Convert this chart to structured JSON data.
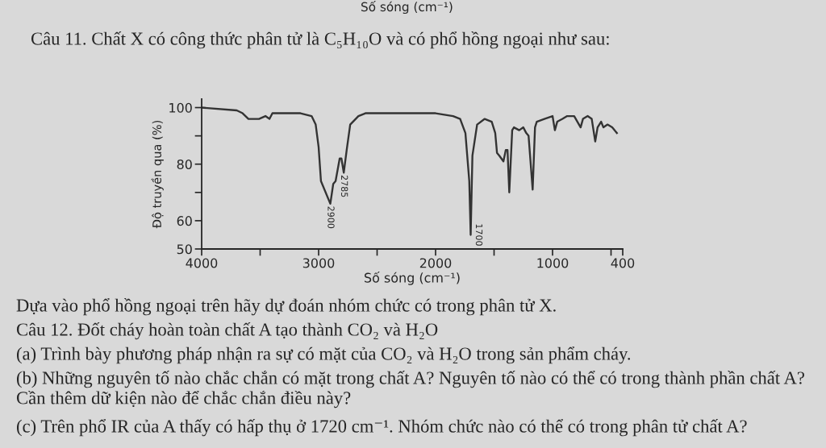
{
  "chart_data": {
    "type": "line",
    "title": "Câu 11. Chất X có công thức phân tử là C₅H₁₀O và có phổ hồng ngoại như sau:",
    "xlabel": "Số sóng (cm⁻¹)",
    "ylabel": "Độ truyền qua (%)",
    "x": [
      4000,
      3700,
      3650,
      3600,
      3510,
      3455,
      3420,
      3395,
      3345,
      3155,
      3060,
      3025,
      3000,
      2980,
      2900,
      2875,
      2855,
      2820,
      2805,
      2785,
      2760,
      2730,
      2660,
      2600,
      2000,
      1850,
      1790,
      1745,
      1712,
      1700,
      1685,
      1645,
      1580,
      1520,
      1490,
      1475,
      1455,
      1420,
      1400,
      1385,
      1370,
      1345,
      1330,
      1285,
      1250,
      1225,
      1205,
      1170,
      1150,
      1135,
      1070,
      1000,
      980,
      960,
      915,
      875,
      815,
      760,
      740,
      700,
      665,
      635,
      615,
      585,
      565,
      530,
      490,
      450
    ],
    "values": [
      100,
      99,
      98,
      96,
      96,
      97,
      96,
      98,
      98,
      98,
      97,
      94,
      86,
      74,
      66,
      73,
      74,
      82,
      82,
      77,
      85,
      94,
      97,
      98,
      98,
      97,
      96,
      91,
      74,
      55,
      83,
      94,
      96,
      95,
      91,
      84,
      83,
      81,
      85,
      85,
      70,
      92,
      93,
      92,
      93,
      91,
      90,
      71,
      93,
      95,
      96,
      97,
      92,
      95,
      96,
      97,
      97,
      93,
      96,
      97,
      96,
      88,
      93,
      95,
      93,
      94,
      93,
      91
    ],
    "color": "#333333",
    "xlim": [
      4000,
      400
    ],
    "ylim": [
      50,
      103
    ],
    "xticks": [
      4000,
      {
        "value": 3500,
        "label": null
      },
      3000,
      {
        "value": 2500,
        "label": null
      },
      2000,
      {
        "value": 1500,
        "label": null
      },
      1000,
      {
        "value": 500,
        "label": null
      },
      400
    ],
    "yticks": [
      50,
      60,
      {
        "value": 70,
        "label": null
      },
      80,
      {
        "value": 90,
        "label": null
      },
      100
    ],
    "annotations": [
      "Số sóng (cm⁻¹)",
      {
        "text": "2900",
        "x": 2900,
        "y": 66
      },
      {
        "text": "2785",
        "x": 2785,
        "y": 77
      },
      {
        "text": "1700",
        "x": 1700,
        "y": 55
      },
      "Dựa vào phổ hồng ngoại trên hãy dự đoán nhóm chức có trong phân tử X.",
      "Câu 12. Đốt cháy hoàn toàn chất A tạo thành CO₂ và H₂O",
      "(a) Trình bày phương pháp nhận ra sự có mặt của CO₂ và H₂O trong sản phẩm cháy.",
      "(b) Những nguyên tố nào chắc chắn có mặt trong chất A? Nguyên tố nào có thể có trong thành phần chất A? Cần thêm dữ kiện nào để chắc chắn điều này?",
      "(c) Trên phổ IR của A thấy có hấp thụ ở 1720 cm⁻¹. Nhóm chức nào có thể có trong phân tử chất A?"
    ]
  }
}
